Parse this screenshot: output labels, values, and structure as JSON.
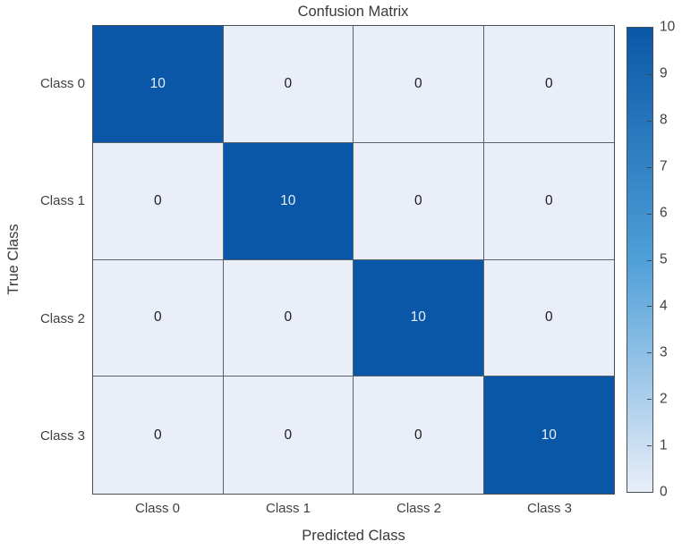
{
  "figure": {
    "title": "Confusion Matrix",
    "xlabel": "Predicted Class",
    "ylabel": "True Class"
  },
  "chart_data": {
    "type": "heatmap",
    "subtype": "confusion-matrix",
    "title": "Confusion Matrix",
    "xlabel": "Predicted Class",
    "ylabel": "True Class",
    "x_categories": [
      "Class 0",
      "Class 1",
      "Class 2",
      "Class 3"
    ],
    "y_categories": [
      "Class 0",
      "Class 1",
      "Class 2",
      "Class 3"
    ],
    "matrix": [
      [
        10,
        0,
        0,
        0
      ],
      [
        0,
        10,
        0,
        0
      ],
      [
        0,
        0,
        10,
        0
      ],
      [
        0,
        0,
        0,
        10
      ]
    ],
    "colorbar": {
      "min": 0,
      "max": 10,
      "ticks": [
        0,
        1,
        2,
        3,
        4,
        5,
        6,
        7,
        8,
        9,
        10
      ],
      "position": "right"
    },
    "colors": {
      "cell_high": "#0b57a7",
      "cell_mid": "#4f9fd8",
      "cell_low": "#e9eef8",
      "grid_line": "#59616b",
      "value_text_on_dark": "#e9eff8",
      "value_text_on_light": "#1c1c1c"
    },
    "legend": "none",
    "grid": true
  }
}
